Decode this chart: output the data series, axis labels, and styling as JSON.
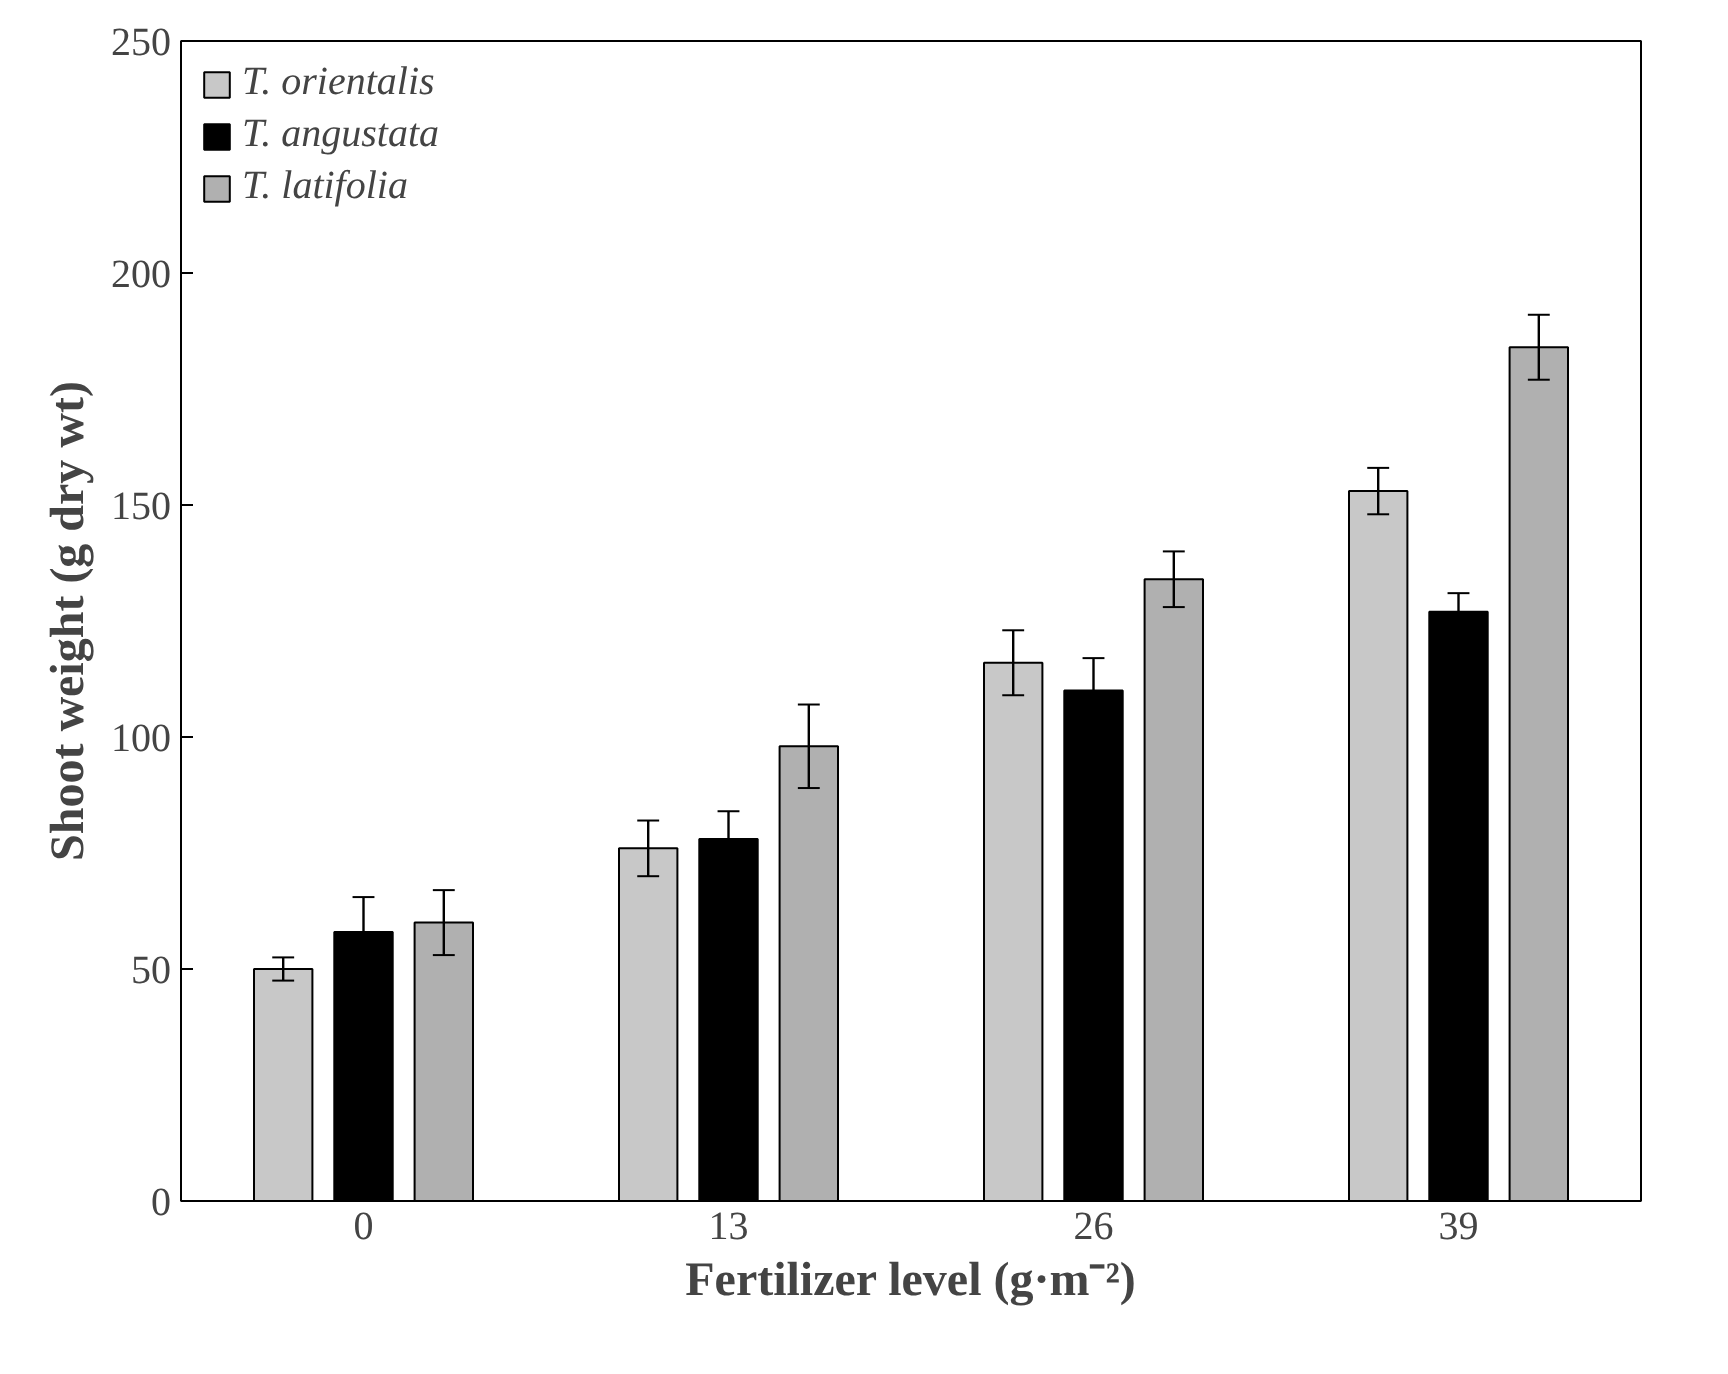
{
  "chart_data": {
    "type": "bar",
    "xlabel": "Fertilizer level (g·m⁻²)",
    "ylabel": "Shoot weight (g dry wt)",
    "categories": [
      "0",
      "13",
      "26",
      "39"
    ],
    "series": [
      {
        "name": "T. orientalis",
        "color": "#c8c8c8",
        "values": [
          50,
          76,
          116,
          153
        ],
        "errors": [
          2.5,
          6,
          7,
          5
        ]
      },
      {
        "name": "T. angustata",
        "color": "#000000",
        "values": [
          58,
          78,
          110,
          127
        ],
        "errors": [
          7.5,
          6,
          7,
          4
        ]
      },
      {
        "name": "T. latifolia",
        "color": "#b0b0b0",
        "values": [
          60,
          98,
          134,
          184
        ],
        "errors": [
          7,
          9,
          6,
          7
        ]
      }
    ],
    "ylim": [
      0,
      250
    ],
    "yticks": [
      0,
      50,
      100,
      150,
      200,
      250
    ],
    "grid": false,
    "legend": "top left"
  }
}
